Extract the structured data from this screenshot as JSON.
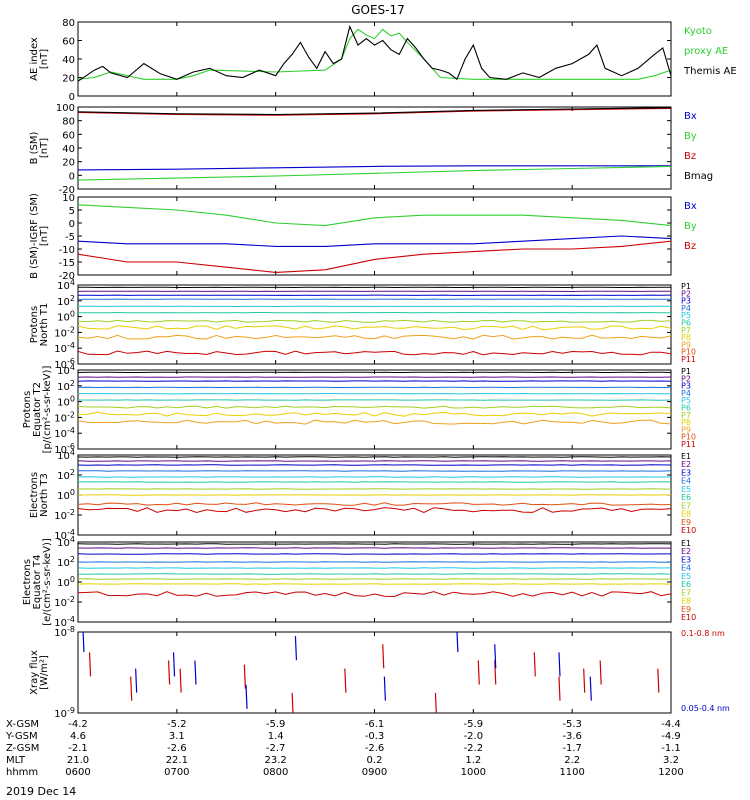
{
  "title": "GOES-17",
  "date_label": "2019 Dec 14",
  "chart_data": [
    {
      "type": "line",
      "panel": "ae",
      "ylabel": [
        "AE index",
        "[nT]"
      ],
      "ylim": [
        0,
        80
      ],
      "yticks": [
        "0",
        "20",
        "40",
        "60",
        "80"
      ],
      "legend": [
        {
          "text": "Kyoto",
          "color": "#2fd02f"
        },
        {
          "text": "proxy AE",
          "color": "#2fd02f"
        },
        {
          "text": "Themis AE",
          "color": "#000000"
        }
      ],
      "series": [
        {
          "name": "Kyoto proxy AE",
          "color": "#2fd02f",
          "x": [
            "0600",
            "0610",
            "0620",
            "0640",
            "0700",
            "0710",
            "0720",
            "0800",
            "0830",
            "0840",
            "0845",
            "0850",
            "0855",
            "0900",
            "0905",
            "0910",
            "0915",
            "0920",
            "0930",
            "0940",
            "1000",
            "1100",
            "1140",
            "1150",
            "1200"
          ],
          "y": [
            18,
            20,
            26,
            18,
            18,
            22,
            28,
            26,
            28,
            40,
            62,
            72,
            66,
            62,
            72,
            65,
            68,
            58,
            40,
            20,
            18,
            18,
            18,
            22,
            28
          ]
        },
        {
          "name": "Themis AE",
          "color": "#000000",
          "x": [
            "0600",
            "0605",
            "0610",
            "0615",
            "0620",
            "0630",
            "0640",
            "0650",
            "0700",
            "0710",
            "0720",
            "0730",
            "0740",
            "0750",
            "0800",
            "0805",
            "0810",
            "0815",
            "0820",
            "0825",
            "0830",
            "0835",
            "0840",
            "0845",
            "0850",
            "0855",
            "0900",
            "0905",
            "0910",
            "0915",
            "0920",
            "0925",
            "0930",
            "0935",
            "0940",
            "0945",
            "0950",
            "0955",
            "1000",
            "1005",
            "1010",
            "1020",
            "1030",
            "1040",
            "1050",
            "1100",
            "1110",
            "1115",
            "1120",
            "1130",
            "1140",
            "1150",
            "1155",
            "1200"
          ],
          "y": [
            16,
            22,
            28,
            32,
            25,
            20,
            35,
            24,
            18,
            26,
            30,
            22,
            20,
            28,
            22,
            35,
            45,
            58,
            42,
            30,
            48,
            35,
            40,
            75,
            55,
            62,
            55,
            60,
            50,
            45,
            62,
            52,
            40,
            30,
            28,
            25,
            18,
            40,
            55,
            30,
            20,
            18,
            25,
            20,
            30,
            35,
            45,
            55,
            30,
            22,
            30,
            45,
            52,
            22
          ]
        }
      ]
    },
    {
      "type": "line",
      "panel": "bfield",
      "ylabel": [
        "B (SM)",
        "[nT]"
      ],
      "ylim": [
        -20,
        100
      ],
      "yticks": [
        "-20",
        "0",
        "20",
        "40",
        "60",
        "80",
        "100"
      ],
      "legend": [
        {
          "text": "Bx",
          "color": "#0000cc"
        },
        {
          "text": "By",
          "color": "#2fd02f"
        },
        {
          "text": "Bz",
          "color": "#cc0000"
        },
        {
          "text": "Bmag",
          "color": "#000000"
        }
      ],
      "series": [
        {
          "name": "Bx",
          "color": "#0000cc",
          "x": [
            "0600",
            "0700",
            "0800",
            "0900",
            "1000",
            "1100",
            "1200"
          ],
          "y": [
            8,
            9,
            11,
            13,
            14,
            14,
            14
          ]
        },
        {
          "name": "By",
          "color": "#2fd02f",
          "x": [
            "0600",
            "0700",
            "0800",
            "0900",
            "1000",
            "1100",
            "1200"
          ],
          "y": [
            -7,
            -4,
            -1,
            3,
            7,
            10,
            13
          ]
        },
        {
          "name": "Bz",
          "color": "#cc0000",
          "x": [
            "0600",
            "0700",
            "0800",
            "0900",
            "1000",
            "1100",
            "1200"
          ],
          "y": [
            92,
            89,
            88,
            90,
            94,
            96,
            98
          ]
        },
        {
          "name": "Bmag",
          "color": "#000000",
          "x": [
            "0600",
            "0700",
            "0800",
            "0900",
            "1000",
            "1100",
            "1200"
          ],
          "y": [
            93,
            90,
            89,
            91,
            95,
            97,
            99
          ]
        }
      ]
    },
    {
      "type": "line",
      "panel": "bigrf",
      "ylabel": [
        "B (SM)-IGRF (SM)",
        "[nT]"
      ],
      "ylim": [
        -20,
        10
      ],
      "yticks": [
        "-20",
        "-15",
        "-10",
        "-5",
        "0",
        "5",
        "10"
      ],
      "legend": [
        {
          "text": "Bx",
          "color": "#0000cc"
        },
        {
          "text": "By",
          "color": "#2fd02f"
        },
        {
          "text": "Bz",
          "color": "#cc0000"
        }
      ],
      "series": [
        {
          "name": "By",
          "color": "#2fd02f",
          "x": [
            "0600",
            "0630",
            "0700",
            "0730",
            "0800",
            "0830",
            "0900",
            "0930",
            "1000",
            "1030",
            "1100",
            "1130",
            "1200"
          ],
          "y": [
            7,
            6,
            5,
            3,
            0,
            -1,
            2,
            3,
            3,
            3,
            2,
            1,
            -1
          ]
        },
        {
          "name": "Bx",
          "color": "#0000cc",
          "x": [
            "0600",
            "0630",
            "0700",
            "0730",
            "0800",
            "0830",
            "0900",
            "0930",
            "1000",
            "1030",
            "1100",
            "1130",
            "1200"
          ],
          "y": [
            -7,
            -8,
            -8,
            -8,
            -9,
            -9,
            -8,
            -8,
            -8,
            -7,
            -6,
            -5,
            -6
          ]
        },
        {
          "name": "Bz",
          "color": "#cc0000",
          "x": [
            "0600",
            "0630",
            "0700",
            "0730",
            "0800",
            "0830",
            "0900",
            "0930",
            "1000",
            "1030",
            "1100",
            "1130",
            "1200"
          ],
          "y": [
            -12,
            -15,
            -15,
            -17,
            -19,
            -18,
            -14,
            -12,
            -11,
            -10,
            -10,
            -9,
            -7
          ]
        }
      ]
    },
    {
      "type": "line",
      "panel": "protons_t1",
      "scale": "log",
      "ylabel": [
        "Protons",
        "North T1"
      ],
      "ylim_exp": [
        -6,
        4
      ],
      "yticks": [
        "10^4",
        "10^2",
        "10^0",
        "10^-2",
        "10^-4",
        "10^-6"
      ],
      "legend": [
        {
          "text": "P1",
          "color": "#000000"
        },
        {
          "text": "P2",
          "color": "#6a0a8a"
        },
        {
          "text": "P3",
          "color": "#0000cc"
        },
        {
          "text": "P4",
          "color": "#1a70e0"
        },
        {
          "text": "P5",
          "color": "#20c8e8"
        },
        {
          "text": "P6",
          "color": "#20c8a0"
        },
        {
          "text": "P7",
          "color": "#a0d020"
        },
        {
          "text": "P8",
          "color": "#e8d000"
        },
        {
          "text": "P9",
          "color": "#f0a020"
        },
        {
          "text": "P10",
          "color": "#e05010"
        },
        {
          "text": "P11",
          "color": "#cc0000"
        }
      ],
      "series_exp": [
        3.7,
        3.2,
        2.7,
        2.2,
        1.3,
        0.5,
        -0.6,
        -1.4,
        -2.6,
        -4.6
      ],
      "series_colors": [
        "#000000",
        "#6a0a8a",
        "#0000cc",
        "#1a70e0",
        "#20c8e8",
        "#20c8a0",
        "#a0d020",
        "#e8d000",
        "#f0a020",
        "#cc0000"
      ]
    },
    {
      "type": "line",
      "panel": "protons_t2",
      "scale": "log",
      "ylabel": [
        "Protons",
        "Equator T2",
        "[p/(cm²-s-sr-keV)]"
      ],
      "ylim_exp": [
        -6,
        4
      ],
      "yticks": [
        "10^4",
        "10^2",
        "10^0",
        "10^-2",
        "10^-4",
        "10^-6"
      ],
      "legend": [
        {
          "text": "P1",
          "color": "#000000"
        },
        {
          "text": "P2",
          "color": "#6a0a8a"
        },
        {
          "text": "P3",
          "color": "#0000cc"
        },
        {
          "text": "P4",
          "color": "#1a70e0"
        },
        {
          "text": "P5",
          "color": "#20c8e8"
        },
        {
          "text": "P6",
          "color": "#20c8a0"
        },
        {
          "text": "P7",
          "color": "#a0d020"
        },
        {
          "text": "P8",
          "color": "#e8d000"
        },
        {
          "text": "P9",
          "color": "#f0a020"
        },
        {
          "text": "P10",
          "color": "#e05010"
        },
        {
          "text": "P11",
          "color": "#cc0000"
        }
      ],
      "series_exp": [
        3.7,
        3.1,
        2.6,
        1.8,
        1.0,
        0.2,
        -0.7,
        -1.6,
        -2.6
      ],
      "series_colors": [
        "#000000",
        "#6a0a8a",
        "#0000cc",
        "#1a70e0",
        "#20c8e8",
        "#20c8a0",
        "#a0d020",
        "#e8d000",
        "#f0a020"
      ]
    },
    {
      "type": "line",
      "panel": "electrons_t3",
      "scale": "log",
      "ylabel": [
        "Electrons",
        "North T3"
      ],
      "ylim_exp": [
        -4,
        4
      ],
      "yticks": [
        "10^4",
        "10^2",
        "10^0",
        "10^-2",
        "10^-4"
      ],
      "legend": [
        {
          "text": "E1",
          "color": "#000000"
        },
        {
          "text": "E2",
          "color": "#6a0a8a"
        },
        {
          "text": "E3",
          "color": "#0000cc"
        },
        {
          "text": "E4",
          "color": "#1a70e0"
        },
        {
          "text": "E5",
          "color": "#20c8e8"
        },
        {
          "text": "E6",
          "color": "#20c8a0"
        },
        {
          "text": "E7",
          "color": "#a0d020"
        },
        {
          "text": "E8",
          "color": "#e8d000"
        },
        {
          "text": "E9",
          "color": "#e05010"
        },
        {
          "text": "E10",
          "color": "#cc0000"
        }
      ],
      "series_exp": [
        3.8,
        3.4,
        3.0,
        2.4,
        1.8,
        1.3,
        0.6,
        0.0,
        -0.9,
        -1.5
      ],
      "series_colors": [
        "#000000",
        "#6a0a8a",
        "#0000cc",
        "#1a70e0",
        "#20c8e8",
        "#20c8a0",
        "#a0d020",
        "#e8d000",
        "#e05010",
        "#cc0000"
      ]
    },
    {
      "type": "line",
      "panel": "electrons_t4",
      "scale": "log",
      "ylabel": [
        "Electrons",
        "Equator T4",
        "[e/(cm²-s-sr-keV)]"
      ],
      "ylim_exp": [
        -4,
        4
      ],
      "yticks": [
        "10^4",
        "10^2",
        "10^0",
        "10^-2",
        "10^-4"
      ],
      "legend": [
        {
          "text": "E1",
          "color": "#000000"
        },
        {
          "text": "E2",
          "color": "#6a0a8a"
        },
        {
          "text": "E3",
          "color": "#0000cc"
        },
        {
          "text": "E4",
          "color": "#1a70e0"
        },
        {
          "text": "E5",
          "color": "#20c8e8"
        },
        {
          "text": "E6",
          "color": "#20c8a0"
        },
        {
          "text": "E7",
          "color": "#a0d020"
        },
        {
          "text": "E8",
          "color": "#e8d000"
        },
        {
          "text": "E9",
          "color": "#e05010"
        },
        {
          "text": "E10",
          "color": "#cc0000"
        }
      ],
      "series_exp": [
        3.8,
        3.4,
        2.8,
        2.0,
        1.4,
        0.8,
        0.3,
        -0.2,
        -1.2
      ],
      "series_colors": [
        "#000000",
        "#6a0a8a",
        "#0000cc",
        "#1a70e0",
        "#20c8e8",
        "#20c8a0",
        "#a0d020",
        "#e8d000",
        "#cc0000"
      ]
    },
    {
      "type": "line",
      "panel": "xray",
      "scale": "log",
      "ylabel": [
        "Xray flux",
        "[W/m²]"
      ],
      "ylim_exp": [
        -9,
        -8
      ],
      "yticks": [
        "10^-8",
        "10^-9"
      ],
      "legend": [
        {
          "text": "0.1-0.8 nm",
          "color": "#cc0000"
        },
        {
          "text": "0.05-0.4 nm",
          "color": "#0000cc"
        }
      ],
      "series": [
        {
          "name": "0.1-0.8 nm",
          "color": "#cc0000",
          "x": [
            "0607",
            "0632",
            "0655",
            "0702",
            "0741",
            "0810",
            "0842",
            "0905",
            "0937",
            "1003",
            "1013",
            "1037",
            "1052",
            "1107",
            "1117",
            "1152"
          ],
          "y": [
            -8.4,
            -8.7,
            -8.5,
            -8.6,
            -8.55,
            -8.9,
            -8.6,
            -8.3,
            -8.9,
            -8.5,
            -8.5,
            -8.4,
            -8.7,
            -8.6,
            -8.5,
            -8.6
          ]
        },
        {
          "name": "0.05-0.4 nm",
          "color": "#0000cc",
          "x": [
            "0603",
            "0635",
            "0658",
            "0711",
            "0742",
            "0812",
            "0906",
            "0950",
            "1013",
            "1052",
            "1111"
          ],
          "y": [
            -8.1,
            -8.6,
            -8.4,
            -8.5,
            -8.8,
            -8.2,
            -8.7,
            -8.1,
            -8.3,
            -8.4,
            -8.7
          ]
        }
      ]
    }
  ],
  "x_axis": {
    "xlim": [
      "0600",
      "1200"
    ],
    "row_labels": [
      "X-GSM",
      "Y-GSM",
      "Z-GSM",
      "MLT",
      "hhmm"
    ],
    "columns": [
      [
        "-4.2",
        "4.6",
        "-2.1",
        "21.0",
        "0600"
      ],
      [
        "-5.2",
        "3.1",
        "-2.6",
        "22.1",
        "0700"
      ],
      [
        "-5.9",
        "1.4",
        "-2.7",
        "23.2",
        "0800"
      ],
      [
        "-6.1",
        "-0.3",
        "-2.6",
        "0.2",
        "0900"
      ],
      [
        "-5.9",
        "-2.0",
        "-2.2",
        "1.2",
        "1000"
      ],
      [
        "-5.3",
        "-3.6",
        "-1.7",
        "2.2",
        "1100"
      ],
      [
        "-4.4",
        "-4.9",
        "-1.1",
        "3.2",
        "1200"
      ]
    ]
  }
}
